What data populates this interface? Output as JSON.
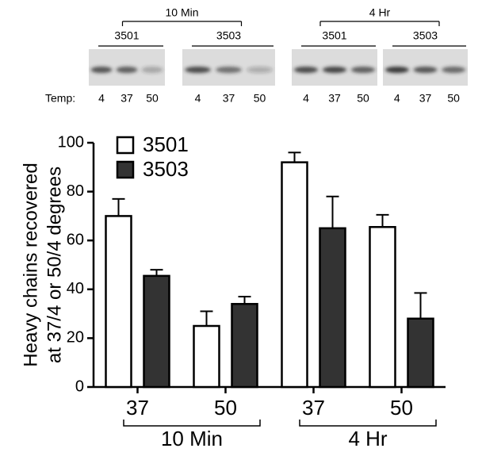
{
  "blot": {
    "panels": [
      {
        "time": "10 Min",
        "lanes": [
          "3501",
          "3503"
        ]
      },
      {
        "time": "4 Hr",
        "lanes": [
          "3501",
          "3503"
        ]
      }
    ],
    "temp_label": "Temp:",
    "temps": [
      "4",
      "37",
      "50"
    ]
  },
  "chart_data": {
    "type": "bar",
    "ylabel": [
      "Heavy chains recovered",
      "at 37/4 or 50/4 degrees"
    ],
    "categories": [
      "37",
      "50",
      "37",
      "50"
    ],
    "groups": [
      "10 Min",
      "4 Hr"
    ],
    "series": [
      {
        "name": "3501",
        "color": "#ffffff",
        "values": [
          70,
          25,
          92,
          65.5
        ],
        "errors": [
          7,
          6,
          4,
          5
        ]
      },
      {
        "name": "3503",
        "color": "#333333",
        "values": [
          45.5,
          34,
          65,
          28
        ],
        "errors": [
          2.5,
          3,
          13,
          10.5
        ]
      }
    ],
    "ylim": [
      0,
      100
    ],
    "yticks": [
      0,
      20,
      40,
      60,
      80,
      100
    ]
  }
}
